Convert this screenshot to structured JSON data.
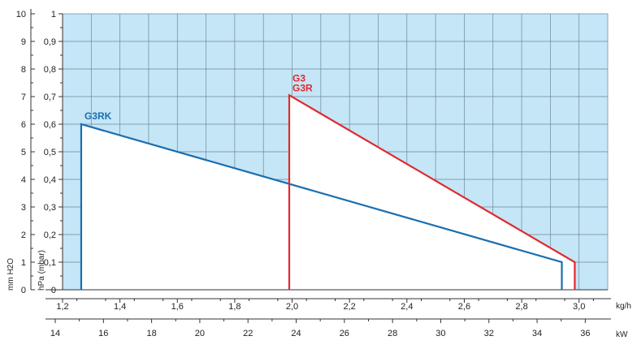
{
  "chart_data": {
    "type": "line",
    "title": "",
    "xlabel": "kg/h",
    "x2label": "kW",
    "ylabel": "hPa (mbar)",
    "y2label": "mm H2O",
    "xlim": [
      1.2,
      3.1
    ],
    "ylim": [
      0,
      1.0
    ],
    "x2lim": [
      14,
      37
    ],
    "y2lim": [
      0,
      10
    ],
    "xticks": [
      1.2,
      1.4,
      1.6,
      1.8,
      2.0,
      2.2,
      2.4,
      2.6,
      2.8,
      3.0
    ],
    "x_tick_labels": [
      "1,2",
      "1,4",
      "1,6",
      "1,8",
      "2,0",
      "2,2",
      "2,4",
      "2,6",
      "2,8",
      "3,0"
    ],
    "yticks": [
      0,
      0.1,
      0.2,
      0.3,
      0.4,
      0.5,
      0.6,
      0.7,
      0.8,
      0.9,
      1.0
    ],
    "y_tick_labels": [
      "0",
      "0,1",
      "0,2",
      "0,3",
      "0,4",
      "0,5",
      "0,6",
      "0,7",
      "0,8",
      "0,9",
      "1"
    ],
    "x2ticks": [
      14,
      16,
      18,
      20,
      22,
      24,
      26,
      28,
      30,
      32,
      34,
      36
    ],
    "x2_tick_labels": [
      "14",
      "16",
      "18",
      "20",
      "22",
      "24",
      "26",
      "28",
      "30",
      "32",
      "34",
      "36"
    ],
    "y2ticks": [
      0,
      1,
      2,
      3,
      4,
      5,
      6,
      7,
      8,
      9,
      10
    ],
    "y2_tick_labels": [
      "0",
      "1",
      "2",
      "3",
      "4",
      "5",
      "6",
      "7",
      "8",
      "9",
      "10"
    ],
    "grid": true,
    "background_color": "#c5e6f7",
    "series": [
      {
        "name": "G3RK",
        "color": "#1a6fb0",
        "x": [
          1.265,
          1.265,
          2.94,
          2.94
        ],
        "y": [
          0,
          0.6,
          0.1,
          0
        ]
      },
      {
        "name": "G3 G3R",
        "color": "#e02a2f",
        "x": [
          1.99,
          1.99,
          2.985,
          2.985
        ],
        "y": [
          0,
          0.705,
          0.1,
          0
        ]
      }
    ],
    "annotations": [
      {
        "text": "G3RK",
        "color": "#1a6fb0"
      },
      {
        "text": "G3",
        "color": "#e02a2f"
      },
      {
        "text": "G3R",
        "color": "#e02a2f"
      }
    ]
  }
}
